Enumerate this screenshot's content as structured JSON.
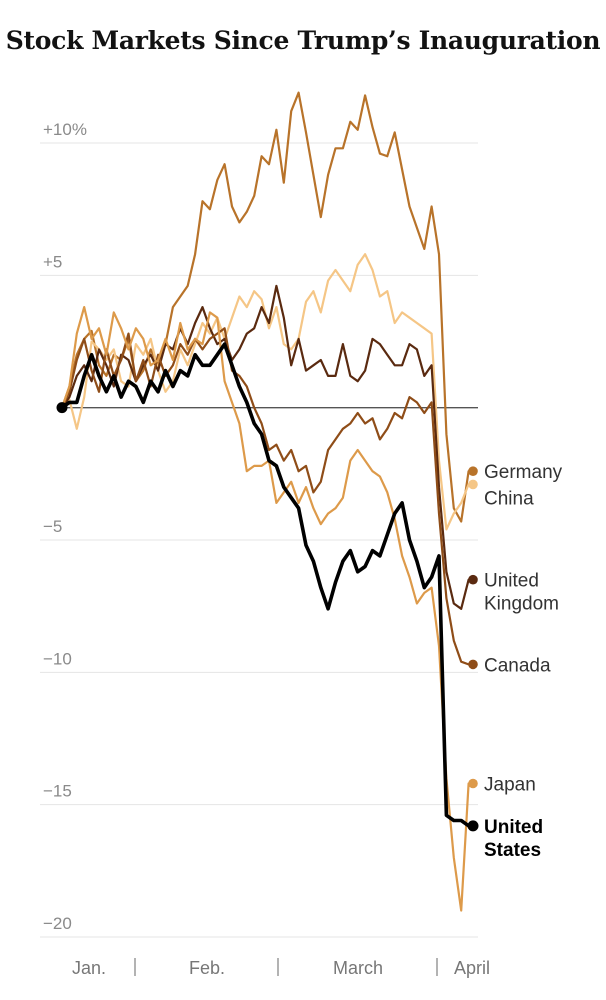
{
  "title": "Stock Markets Since Trump’s Inauguration",
  "chart_data": {
    "type": "line",
    "title": "Stock Markets Since Trump’s Inauguration",
    "xlabel": "",
    "ylabel": "",
    "ylim": [
      -20,
      12
    ],
    "xlim": [
      0,
      56
    ],
    "y_ticks": [
      {
        "value": 10,
        "label": "+10%"
      },
      {
        "value": 5,
        "label": "+5"
      },
      {
        "value": 0,
        "label": ""
      },
      {
        "value": -5,
        "label": "−5"
      },
      {
        "value": -10,
        "label": "−10"
      },
      {
        "value": -15,
        "label": "−15"
      },
      {
        "value": -20,
        "label": "−20"
      }
    ],
    "x_ticks": [
      {
        "value": 2.3,
        "label": "Jan."
      },
      {
        "value": 18,
        "label": "Feb."
      },
      {
        "value": 38,
        "label": "March"
      },
      {
        "value": 54.5,
        "label": "April"
      }
    ],
    "x_separators": [
      9.5,
      27.5,
      49.5
    ],
    "series": [
      {
        "name": "Germany",
        "label_lines": [
          "Germany"
        ],
        "color": "#b8732a",
        "bold": false,
        "label_y": -2.4,
        "end_value": -2.4,
        "x": [
          0,
          1,
          2,
          3,
          4,
          5,
          6,
          7,
          8,
          9,
          10,
          11,
          12,
          13,
          14,
          15,
          16,
          17,
          18,
          19,
          20,
          21,
          22,
          23,
          24,
          25,
          26,
          27,
          28,
          29,
          30,
          31,
          32,
          33,
          34,
          35,
          36,
          37,
          38,
          39,
          40,
          41,
          42,
          43,
          44,
          45,
          46,
          47,
          48,
          49,
          50,
          51,
          52,
          53,
          54,
          55,
          56
        ],
        "values": [
          0,
          0.8,
          2.0,
          2.6,
          2.9,
          1.6,
          1.2,
          2.0,
          1.8,
          2.6,
          1.0,
          1.4,
          2.2,
          1.6,
          2.4,
          3.8,
          4.2,
          4.6,
          5.8,
          7.8,
          7.5,
          8.6,
          9.2,
          7.6,
          7.0,
          7.4,
          8.0,
          9.5,
          9.2,
          10.5,
          8.5,
          11.2,
          11.9,
          10.4,
          8.8,
          7.2,
          8.8,
          9.8,
          9.8,
          10.8,
          10.5,
          11.8,
          10.6,
          9.6,
          9.5,
          10.4,
          9.0,
          7.6,
          6.8,
          6.0,
          7.6,
          5.8,
          -1.0,
          -3.8,
          -4.3,
          -2.4,
          -2.4
        ]
      },
      {
        "name": "China",
        "label_lines": [
          "China"
        ],
        "color": "#f5c686",
        "bold": false,
        "label_y": -3.4,
        "end_value": -2.9,
        "x": [
          0,
          1,
          2,
          3,
          4,
          5,
          6,
          7,
          8,
          9,
          10,
          11,
          12,
          13,
          14,
          15,
          16,
          17,
          18,
          19,
          20,
          21,
          22,
          23,
          24,
          25,
          26,
          27,
          28,
          29,
          30,
          31,
          32,
          33,
          34,
          35,
          36,
          37,
          38,
          39,
          40,
          41,
          42,
          43,
          44,
          45,
          46,
          47,
          48,
          49,
          50,
          51,
          52,
          53,
          54,
          55,
          56
        ],
        "values": [
          0,
          0.3,
          -0.8,
          0.4,
          2.5,
          2.2,
          1.8,
          2.2,
          1.0,
          0.8,
          2.4,
          2.0,
          2.6,
          1.4,
          0.6,
          1.0,
          2.2,
          1.6,
          2.4,
          3.2,
          2.8,
          3.4,
          2.6,
          3.4,
          4.2,
          3.8,
          4.4,
          4.1,
          3.0,
          3.8,
          2.4,
          2.2,
          2.6,
          4.0,
          4.4,
          3.6,
          4.8,
          5.2,
          4.8,
          4.4,
          5.4,
          5.8,
          5.2,
          4.2,
          4.4,
          3.2,
          3.6,
          3.4,
          3.2,
          3.0,
          2.8,
          -2.0,
          -4.6,
          -4.0,
          -3.6,
          -2.9,
          -2.9
        ]
      },
      {
        "name": "United Kingdom",
        "label_lines": [
          "United",
          "Kingdom"
        ],
        "color": "#5a2a10",
        "bold": false,
        "label_y": -6.5,
        "end_value": -6.5,
        "x": [
          0,
          1,
          2,
          3,
          4,
          5,
          6,
          7,
          8,
          9,
          10,
          11,
          12,
          13,
          14,
          15,
          16,
          17,
          18,
          19,
          20,
          21,
          22,
          23,
          24,
          25,
          26,
          27,
          28,
          29,
          30,
          31,
          32,
          33,
          34,
          35,
          36,
          37,
          38,
          39,
          40,
          41,
          42,
          43,
          44,
          45,
          46,
          47,
          48,
          49,
          50,
          51,
          52,
          53,
          54,
          55,
          56
        ],
        "values": [
          0,
          0.4,
          1.2,
          1.6,
          1.0,
          2.2,
          1.6,
          0.8,
          2.0,
          1.8,
          1.0,
          1.6,
          2.0,
          1.4,
          2.4,
          2.2,
          3.0,
          2.4,
          3.2,
          3.8,
          3.0,
          2.4,
          2.6,
          1.8,
          2.2,
          2.8,
          3.0,
          3.8,
          3.2,
          4.6,
          3.4,
          1.6,
          2.6,
          1.4,
          1.6,
          1.8,
          1.2,
          1.2,
          2.4,
          1.2,
          1.0,
          1.4,
          2.6,
          2.4,
          2.0,
          1.6,
          1.6,
          2.4,
          2.2,
          1.2,
          1.6,
          -3.0,
          -6.2,
          -7.4,
          -7.6,
          -6.5,
          -6.5
        ]
      },
      {
        "name": "Canada",
        "label_lines": [
          "Canada"
        ],
        "color": "#8f4d18",
        "bold": false,
        "label_y": -9.7,
        "end_value": -9.7,
        "x": [
          0,
          1,
          2,
          3,
          4,
          5,
          6,
          7,
          8,
          9,
          10,
          11,
          12,
          13,
          14,
          15,
          16,
          17,
          18,
          19,
          20,
          21,
          22,
          23,
          24,
          25,
          26,
          27,
          28,
          29,
          30,
          31,
          32,
          33,
          34,
          35,
          36,
          37,
          38,
          39,
          40,
          41,
          42,
          43,
          44,
          45,
          46,
          47,
          48,
          49,
          50,
          51,
          52,
          53,
          54,
          55,
          56
        ],
        "values": [
          0,
          0.6,
          1.8,
          2.6,
          1.4,
          0.6,
          2.2,
          1.2,
          1.8,
          2.8,
          1.0,
          1.8,
          0.8,
          2.0,
          1.2,
          1.6,
          2.4,
          2.0,
          2.6,
          2.2,
          2.6,
          2.8,
          3.0,
          1.4,
          1.2,
          0.8,
          0.0,
          -0.6,
          -1.6,
          -1.4,
          -2.0,
          -1.6,
          -2.4,
          -2.2,
          -3.2,
          -2.8,
          -1.6,
          -1.2,
          -0.8,
          -0.6,
          -0.2,
          -0.6,
          -0.4,
          -1.2,
          -0.8,
          -0.2,
          -0.4,
          0.4,
          0.2,
          -0.2,
          0.2,
          -4.0,
          -7.2,
          -8.8,
          -9.6,
          -9.7,
          -9.7
        ]
      },
      {
        "name": "Japan",
        "label_lines": [
          "Japan"
        ],
        "color": "#dd9a4a",
        "bold": false,
        "label_y": -14.2,
        "end_value": -14.2,
        "x": [
          0,
          1,
          2,
          3,
          4,
          5,
          6,
          7,
          8,
          9,
          10,
          11,
          12,
          13,
          14,
          15,
          16,
          17,
          18,
          19,
          20,
          21,
          22,
          23,
          24,
          25,
          26,
          27,
          28,
          29,
          30,
          31,
          32,
          33,
          34,
          35,
          36,
          37,
          38,
          39,
          40,
          41,
          42,
          43,
          44,
          45,
          46,
          47,
          48,
          49,
          50,
          51,
          52,
          53,
          54,
          55,
          56
        ],
        "values": [
          0,
          0.8,
          2.8,
          3.8,
          2.6,
          3.0,
          2.0,
          3.6,
          3.0,
          2.2,
          3.0,
          2.6,
          1.6,
          1.8,
          2.6,
          1.8,
          3.2,
          2.2,
          2.6,
          2.4,
          3.6,
          3.4,
          1.0,
          0.2,
          -0.6,
          -2.4,
          -2.2,
          -2.2,
          -2.0,
          -3.6,
          -3.2,
          -2.8,
          -3.6,
          -3.0,
          -3.8,
          -4.4,
          -4.0,
          -3.8,
          -3.4,
          -2.0,
          -1.6,
          -2.0,
          -2.4,
          -2.6,
          -3.2,
          -4.2,
          -5.6,
          -6.4,
          -7.4,
          -7.0,
          -6.8,
          -9.0,
          -14.0,
          -17.0,
          -19.0,
          -14.2,
          -14.2
        ]
      },
      {
        "name": "United States",
        "label_lines": [
          "United",
          "States"
        ],
        "color": "#000000",
        "bold": true,
        "label_y": -15.8,
        "end_value": -15.8,
        "x": [
          0,
          1,
          2,
          3,
          4,
          5,
          6,
          7,
          8,
          9,
          10,
          11,
          12,
          13,
          14,
          15,
          16,
          17,
          18,
          19,
          20,
          21,
          22,
          23,
          24,
          25,
          26,
          27,
          28,
          29,
          30,
          31,
          32,
          33,
          34,
          35,
          36,
          37,
          38,
          39,
          40,
          41,
          42,
          43,
          44,
          45,
          46,
          47,
          48,
          49,
          50,
          51,
          52,
          53,
          54,
          55,
          56
        ],
        "values": [
          0,
          0.2,
          0.2,
          1.2,
          2.0,
          1.2,
          0.6,
          1.2,
          0.4,
          1.0,
          0.8,
          0.2,
          1.0,
          0.6,
          1.4,
          0.8,
          1.4,
          1.2,
          2.0,
          1.6,
          1.6,
          2.0,
          2.4,
          1.6,
          0.8,
          0.2,
          -0.6,
          -1.0,
          -2.0,
          -2.2,
          -3.0,
          -3.4,
          -3.8,
          -5.2,
          -5.8,
          -6.8,
          -7.6,
          -6.6,
          -5.8,
          -5.4,
          -6.2,
          -6.0,
          -5.4,
          -5.6,
          -4.8,
          -4.0,
          -3.6,
          -5.0,
          -5.8,
          -6.8,
          -6.4,
          -5.6,
          -15.4,
          -15.6,
          -15.6,
          -15.8,
          -15.8
        ]
      }
    ]
  }
}
